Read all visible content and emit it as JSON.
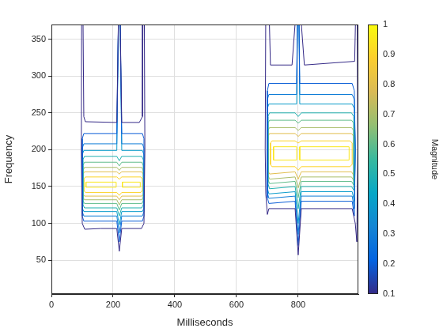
{
  "chart_data": {
    "type": "contour",
    "x_label": "Milliseconds",
    "y_label": "Frequency",
    "xlim": [
      0,
      995
    ],
    "xticks": [
      0,
      200,
      400,
      600,
      800
    ],
    "ylim": [
      4,
      370
    ],
    "yticks": [
      50,
      100,
      150,
      200,
      250,
      300,
      350
    ],
    "grid": true,
    "colorbar": {
      "label": "Magnitude",
      "lim": [
        0.1,
        1
      ],
      "ticks": [
        0.1,
        0.2,
        0.3,
        0.4,
        0.5,
        0.6,
        0.7,
        0.8,
        0.9,
        1
      ]
    },
    "contours": [
      {
        "level": 0.1,
        "x": [
          100,
          108,
          160,
          212,
          220,
          228,
          292,
          300,
          303,
          301,
          297,
          295,
          285,
          228,
          222,
          218,
          212,
          110,
          105,
          102,
          98,
          97,
          100
        ],
        "y": [
          100,
          92,
          93,
          93,
          62,
          93,
          93,
          100,
          200,
          400,
          400,
          245,
          237,
          237,
          400,
          400,
          237,
          238,
          245,
          400,
          400,
          200,
          100
        ]
      },
      {
        "level": 0.2,
        "x": [
          100,
          105,
          212,
          220,
          228,
          295,
          300,
          300,
          295,
          228,
          222,
          218,
          212,
          105,
          100,
          100
        ],
        "y": [
          110,
          103,
          103,
          75,
          103,
          103,
          110,
          215,
          222,
          222,
          400,
          400,
          222,
          222,
          215,
          110
        ]
      },
      {
        "level": 0.3,
        "x": [
          100,
          105,
          212,
          220,
          228,
          295,
          300,
          300,
          295,
          228,
          222,
          218,
          212,
          105,
          100,
          100
        ],
        "y": [
          116,
          110,
          110,
          87,
          110,
          110,
          116,
          202,
          208,
          208,
          400,
          400,
          208,
          208,
          202,
          116
        ]
      },
      {
        "level": 0.4,
        "x": [
          100,
          105,
          212,
          220,
          228,
          295,
          300,
          300,
          295,
          228,
          222,
          218,
          212,
          105,
          100,
          100
        ],
        "y": [
          121,
          116,
          116,
          98,
          116,
          116,
          121,
          193,
          199,
          199,
          400,
          400,
          199,
          199,
          193,
          121
        ]
      },
      {
        "level": 0.5,
        "x": [
          102,
          107,
          212,
          220,
          228,
          293,
          298,
          298,
          293,
          228,
          220,
          212,
          107,
          102,
          102
        ],
        "y": [
          126,
          121,
          121,
          110,
          121,
          121,
          126,
          186,
          191,
          191,
          185,
          191,
          191,
          186,
          126
        ]
      },
      {
        "level": 0.6,
        "x": [
          102,
          107,
          212,
          220,
          228,
          293,
          298,
          298,
          293,
          228,
          220,
          212,
          107,
          102,
          102
        ],
        "y": [
          131,
          127,
          127,
          118,
          127,
          127,
          131,
          178,
          183,
          183,
          178,
          183,
          183,
          178,
          131
        ]
      },
      {
        "level": 0.7,
        "x": [
          102,
          107,
          212,
          220,
          228,
          293,
          298,
          298,
          293,
          228,
          220,
          212,
          107,
          102,
          102
        ],
        "y": [
          136,
          132,
          132,
          125,
          132,
          132,
          136,
          171,
          176,
          176,
          172,
          176,
          176,
          171,
          136
        ]
      },
      {
        "level": 0.8,
        "x": [
          102,
          107,
          212,
          220,
          228,
          293,
          298,
          298,
          293,
          228,
          220,
          212,
          107,
          102,
          102
        ],
        "y": [
          140,
          137,
          137,
          132,
          137,
          137,
          140,
          166,
          170,
          170,
          167,
          170,
          170,
          166,
          140
        ]
      },
      {
        "level": 0.9,
        "x": [
          105,
          110,
          212,
          220,
          228,
          290,
          295,
          295,
          290,
          228,
          220,
          212,
          110,
          105,
          105
        ],
        "y": [
          145,
          142,
          142,
          138,
          142,
          142,
          145,
          160,
          163,
          163,
          160,
          163,
          163,
          160,
          145
        ]
      },
      {
        "level": 0.95,
        "x": [
          112,
          210,
          210,
          112,
          112
        ],
        "y": [
          149,
          149,
          156,
          156,
          149
        ]
      },
      {
        "level": 0.95,
        "x": [
          230,
          288,
          288,
          230,
          230
        ],
        "y": [
          149,
          149,
          156,
          156,
          149
        ]
      },
      {
        "level": 0.1,
        "x": [
          695,
          700,
          705,
          790,
          800,
          810,
          975,
          985,
          990,
          993,
          991,
          987,
          983,
          820,
          805,
          795,
          780,
          710,
          705,
          695,
          693,
          695
        ],
        "y": [
          140,
          112,
          120,
          120,
          57,
          120,
          120,
          100,
          75,
          200,
          400,
          400,
          320,
          315,
          400,
          400,
          315,
          315,
          400,
          400,
          200,
          140
        ]
      },
      {
        "level": 0.2,
        "x": [
          700,
          705,
          790,
          800,
          810,
          975,
          982,
          985,
          982,
          975,
          805,
          802,
          798,
          795,
          705,
          700,
          700
        ],
        "y": [
          135,
          127,
          130,
          70,
          130,
          130,
          110,
          200,
          280,
          290,
          290,
          400,
          400,
          290,
          290,
          280,
          135
        ]
      },
      {
        "level": 0.3,
        "x": [
          700,
          705,
          790,
          800,
          810,
          975,
          982,
          985,
          982,
          975,
          805,
          802,
          798,
          795,
          705,
          700,
          700
        ],
        "y": [
          142,
          134,
          137,
          85,
          137,
          137,
          120,
          200,
          268,
          275,
          275,
          400,
          400,
          275,
          275,
          268,
          142
        ]
      },
      {
        "level": 0.4,
        "x": [
          700,
          705,
          790,
          800,
          810,
          975,
          982,
          985,
          982,
          975,
          805,
          802,
          798,
          795,
          705,
          700,
          700
        ],
        "y": [
          148,
          140,
          143,
          100,
          143,
          143,
          130,
          200,
          256,
          262,
          262,
          400,
          400,
          262,
          262,
          256,
          148
        ]
      },
      {
        "level": 0.5,
        "x": [
          702,
          707,
          790,
          800,
          810,
          973,
          980,
          980,
          973,
          810,
          800,
          790,
          707,
          702,
          702
        ],
        "y": [
          154,
          147,
          150,
          120,
          150,
          150,
          145,
          245,
          250,
          250,
          245,
          250,
          250,
          245,
          154
        ]
      },
      {
        "level": 0.6,
        "x": [
          702,
          707,
          790,
          800,
          810,
          973,
          980,
          980,
          973,
          810,
          800,
          790,
          707,
          702,
          702
        ],
        "y": [
          160,
          154,
          157,
          135,
          157,
          157,
          152,
          236,
          240,
          240,
          236,
          240,
          240,
          236,
          160
        ]
      },
      {
        "level": 0.7,
        "x": [
          702,
          707,
          790,
          800,
          810,
          973,
          980,
          980,
          973,
          810,
          800,
          790,
          707,
          702,
          702
        ],
        "y": [
          166,
          160,
          163,
          148,
          163,
          163,
          158,
          226,
          230,
          230,
          226,
          230,
          230,
          226,
          166
        ]
      },
      {
        "level": 0.8,
        "x": [
          702,
          707,
          790,
          800,
          810,
          973,
          980,
          980,
          973,
          810,
          800,
          790,
          707,
          702,
          702
        ],
        "y": [
          172,
          167,
          170,
          160,
          170,
          170,
          165,
          218,
          222,
          222,
          218,
          222,
          222,
          218,
          172
        ]
      },
      {
        "level": 0.9,
        "x": [
          710,
          715,
          790,
          800,
          810,
          968,
          975,
          975,
          968,
          810,
          800,
          790,
          715,
          710,
          710
        ],
        "y": [
          180,
          177,
          177,
          172,
          177,
          177,
          180,
          209,
          212,
          212,
          209,
          212,
          212,
          209,
          180
        ]
      },
      {
        "level": 0.95,
        "x": [
          720,
          795,
          795,
          720,
          720
        ],
        "y": [
          186,
          186,
          204,
          204,
          186
        ]
      },
      {
        "level": 0.95,
        "x": [
          805,
          965,
          965,
          805,
          805
        ],
        "y": [
          186,
          186,
          204,
          204,
          186
        ]
      }
    ]
  }
}
